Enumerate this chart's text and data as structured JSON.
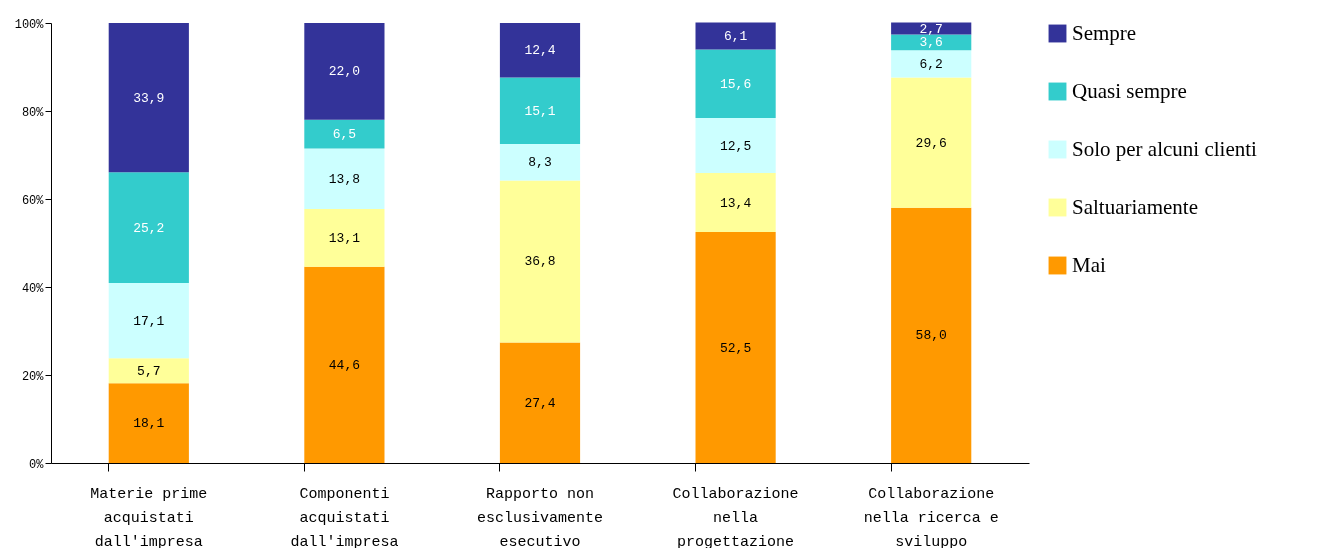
{
  "chart_data": {
    "type": "bar",
    "stacked": true,
    "categories": [
      "Materie prime acquistati dall'impresa",
      "Componenti acquistati dall'impresa",
      "Rapporto non esclusivamente esecutivo",
      "Collaborazione nella progettazione",
      "Collaborazione nella ricerca e sviluppo"
    ],
    "series": [
      {
        "name": "Mai",
        "color": "#ff9900",
        "values": [
          18.1,
          44.6,
          27.4,
          52.5,
          58.0
        ],
        "value_labels": [
          "18,1",
          "44,6",
          "27,4",
          "52,5",
          "58,0"
        ]
      },
      {
        "name": "Saltuariamente",
        "color": "#ffff99",
        "values": [
          5.7,
          13.1,
          36.8,
          13.4,
          29.6
        ],
        "value_labels": [
          "5,7",
          "13,1",
          "36,8",
          "13,4",
          "29,6"
        ]
      },
      {
        "name": "Solo per alcuni clienti",
        "color": "#ccffff",
        "values": [
          17.1,
          13.8,
          8.3,
          12.5,
          6.2
        ],
        "value_labels": [
          "17,1",
          "13,8",
          "8,3",
          "12,5",
          "6,2"
        ]
      },
      {
        "name": "Quasi sempre",
        "color": "#33cccc",
        "values": [
          25.2,
          6.5,
          15.1,
          15.6,
          3.6
        ],
        "value_labels": [
          "25,2",
          "6,5",
          "15,1",
          "15,6",
          "3,6"
        ]
      },
      {
        "name": "Sempre",
        "color": "#333399",
        "values": [
          33.9,
          22.0,
          12.4,
          6.1,
          2.7
        ],
        "value_labels": [
          "33,9",
          "22,0",
          "12,4",
          "6,1",
          "2,7"
        ]
      }
    ],
    "ylim": [
      0,
      100
    ],
    "yticks": [
      {
        "value": 0,
        "label": "0%"
      },
      {
        "value": 20,
        "label": "20%"
      },
      {
        "value": 40,
        "label": "40%"
      },
      {
        "value": 60,
        "label": "60%"
      },
      {
        "value": 80,
        "label": "80%"
      },
      {
        "value": 100,
        "label": "100%"
      }
    ],
    "grid": false,
    "legend": "right"
  }
}
